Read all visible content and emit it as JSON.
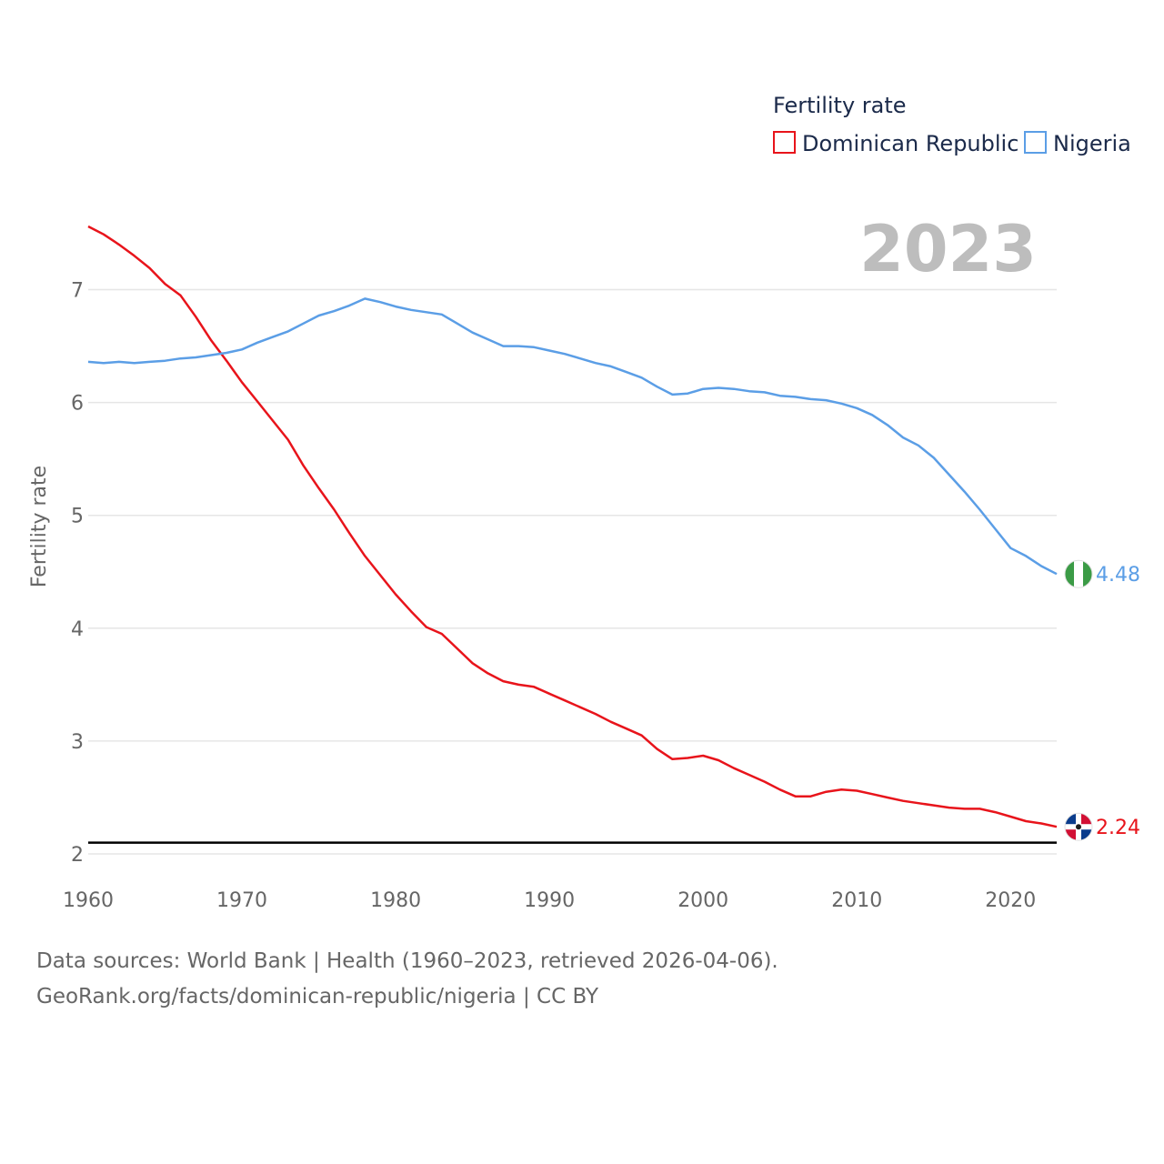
{
  "chart_data": {
    "type": "line",
    "legend_title": "Fertility rate",
    "ylabel": "Fertility rate",
    "xlabel": "",
    "current_year_label": "2023",
    "xlim": [
      1960,
      2023
    ],
    "ylim": [
      2,
      7.6
    ],
    "x_ticks": [
      1960,
      1970,
      1980,
      1990,
      2000,
      2010,
      2020
    ],
    "y_ticks": [
      2,
      3,
      4,
      5,
      6,
      7
    ],
    "reference_line": {
      "y": 2.1,
      "color": "#000000"
    },
    "x": [
      1960,
      1961,
      1962,
      1963,
      1964,
      1965,
      1966,
      1967,
      1968,
      1969,
      1970,
      1971,
      1972,
      1973,
      1974,
      1975,
      1976,
      1977,
      1978,
      1979,
      1980,
      1981,
      1982,
      1983,
      1984,
      1985,
      1986,
      1987,
      1988,
      1989,
      1990,
      1991,
      1992,
      1993,
      1994,
      1995,
      1996,
      1997,
      1998,
      1999,
      2000,
      2001,
      2002,
      2003,
      2004,
      2005,
      2006,
      2007,
      2008,
      2009,
      2010,
      2011,
      2012,
      2013,
      2014,
      2015,
      2016,
      2017,
      2018,
      2019,
      2020,
      2021,
      2022,
      2023
    ],
    "series": [
      {
        "name": "Dominican Republic",
        "color": "#e8141b",
        "end_value_label": "2.24",
        "flag": "dominican-republic-flag",
        "values": [
          7.56,
          7.49,
          7.4,
          7.3,
          7.19,
          7.05,
          6.95,
          6.76,
          6.55,
          6.37,
          6.18,
          6.01,
          5.84,
          5.67,
          5.44,
          5.24,
          5.05,
          4.84,
          4.64,
          4.47,
          4.3,
          4.15,
          4.01,
          3.95,
          3.82,
          3.69,
          3.6,
          3.53,
          3.5,
          3.48,
          3.42,
          3.36,
          3.3,
          3.24,
          3.17,
          3.11,
          3.05,
          2.93,
          2.84,
          2.85,
          2.87,
          2.83,
          2.76,
          2.7,
          2.64,
          2.57,
          2.51,
          2.51,
          2.55,
          2.57,
          2.56,
          2.53,
          2.5,
          2.47,
          2.45,
          2.43,
          2.41,
          2.4,
          2.4,
          2.37,
          2.33,
          2.29,
          2.27,
          2.24
        ]
      },
      {
        "name": "Nigeria",
        "color": "#5b9ee6",
        "end_value_label": "4.48",
        "flag": "nigeria-flag",
        "values": [
          6.36,
          6.35,
          6.36,
          6.35,
          6.36,
          6.37,
          6.39,
          6.4,
          6.42,
          6.44,
          6.47,
          6.53,
          6.58,
          6.63,
          6.7,
          6.77,
          6.81,
          6.86,
          6.92,
          6.89,
          6.85,
          6.82,
          6.8,
          6.78,
          6.7,
          6.62,
          6.56,
          6.5,
          6.5,
          6.49,
          6.46,
          6.43,
          6.39,
          6.35,
          6.32,
          6.27,
          6.22,
          6.14,
          6.07,
          6.08,
          6.12,
          6.13,
          6.12,
          6.1,
          6.09,
          6.06,
          6.05,
          6.03,
          6.02,
          5.99,
          5.95,
          5.89,
          5.8,
          5.69,
          5.62,
          5.51,
          5.36,
          5.21,
          5.05,
          4.88,
          4.71,
          4.64,
          4.55,
          4.48
        ]
      }
    ]
  },
  "footer": {
    "line1": "Data sources: World Bank | Health (1960–2023, retrieved 2026-04-06).",
    "line2": "GeoRank.org/facts/dominican-republic/nigeria | CC BY"
  }
}
